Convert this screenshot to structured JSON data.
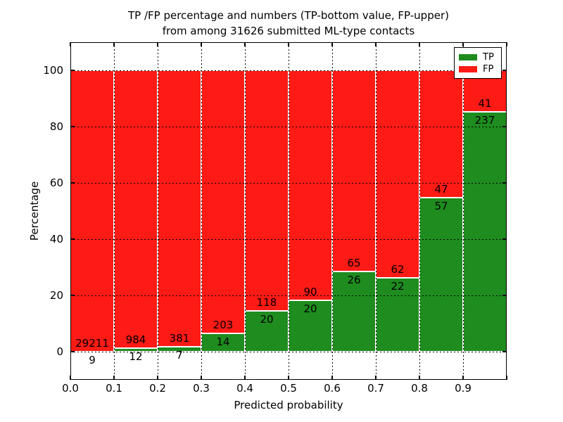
{
  "title": {
    "line1": "TP /FP percentage and numbers (TP-bottom value, FP-upper)",
    "line2": "from among 31626 submitted ML-type contacts"
  },
  "chart_data": {
    "type": "bar",
    "stacked": true,
    "normalized": "each bin stacked to 100%",
    "title": "TP /FP percentage and numbers (TP-bottom value, FP-upper) from among 31626 submitted ML-type contacts",
    "xlabel": "Predicted probability",
    "ylabel": "Percentage",
    "total_contacts": 31626,
    "bin_start": [
      0.0,
      0.1,
      0.2,
      0.3,
      0.4,
      0.5,
      0.6,
      0.7,
      0.8,
      0.9
    ],
    "bin_width": 0.1,
    "series": [
      {
        "name": "TP",
        "color": "#1e8c1e",
        "counts": [
          9,
          12,
          7,
          14,
          20,
          20,
          26,
          22,
          57,
          237
        ]
      },
      {
        "name": "FP",
        "color": "#fe1a15",
        "counts": [
          29211,
          984,
          381,
          203,
          118,
          90,
          65,
          62,
          47,
          41
        ]
      }
    ],
    "xticks": [
      "0.0",
      "0.1",
      "0.2",
      "0.3",
      "0.4",
      "0.5",
      "0.6",
      "0.7",
      "0.8",
      "0.9"
    ],
    "yticks": [
      0,
      20,
      40,
      60,
      80,
      100
    ],
    "xlim": [
      0.0,
      1.0
    ],
    "ylim": [
      -10,
      110
    ],
    "grid": true,
    "grid_style": "dotted",
    "legend_position": "upper right"
  }
}
